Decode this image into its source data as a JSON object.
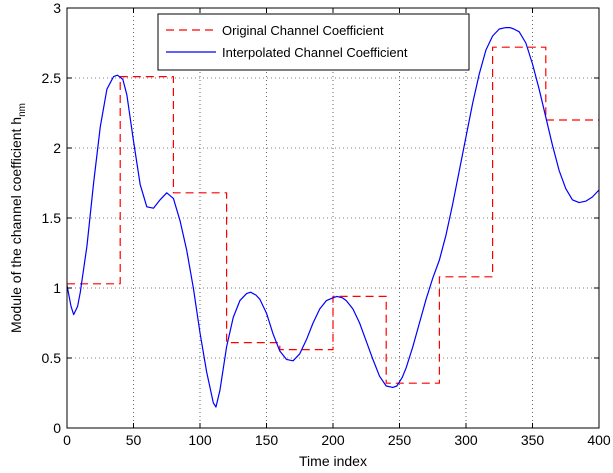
{
  "chart_data": {
    "type": "line",
    "title": "",
    "xlabel": "Time index",
    "ylabel": "Module of the channel coefficient h",
    "ylabel_subscript": "nm",
    "xlim": [
      0,
      400
    ],
    "ylim": [
      0,
      3
    ],
    "xticks": [
      0,
      50,
      100,
      150,
      200,
      250,
      300,
      350,
      400
    ],
    "yticks": [
      0,
      0.5,
      1,
      1.5,
      2,
      2.5,
      3
    ],
    "xtick_labels": [
      "0",
      "50",
      "100",
      "150",
      "200",
      "250",
      "300",
      "350",
      "400"
    ],
    "ytick_labels": [
      "0",
      "0.5",
      "1",
      "1.5",
      "2",
      "2.5",
      "3"
    ],
    "grid": true,
    "legend_position": "top-center",
    "series": [
      {
        "name": "Original Channel Coefficient",
        "style": "dashed",
        "color": "#ff0000",
        "x": [
          0,
          40,
          40,
          80,
          80,
          120,
          120,
          160,
          160,
          200,
          200,
          240,
          240,
          280,
          280,
          320,
          320,
          360,
          360,
          400
        ],
        "y": [
          1.03,
          1.03,
          2.51,
          2.51,
          1.68,
          1.68,
          0.61,
          0.61,
          0.56,
          0.56,
          0.94,
          0.94,
          0.32,
          0.32,
          1.08,
          1.08,
          2.72,
          2.72,
          2.2,
          2.2
        ]
      },
      {
        "name": "Interpolated Channel Coefficient",
        "style": "solid",
        "color": "#0000ff",
        "x": [
          0,
          3,
          5,
          8,
          10,
          15,
          20,
          25,
          30,
          35,
          38,
          42,
          45,
          50,
          55,
          60,
          65,
          70,
          75,
          80,
          85,
          90,
          95,
          100,
          105,
          110,
          112,
          115,
          120,
          125,
          130,
          135,
          138,
          142,
          145,
          150,
          155,
          160,
          165,
          170,
          175,
          180,
          185,
          190,
          195,
          200,
          203,
          207,
          210,
          215,
          220,
          225,
          230,
          235,
          240,
          245,
          248,
          252,
          255,
          260,
          265,
          270,
          275,
          280,
          285,
          290,
          295,
          300,
          305,
          310,
          315,
          320,
          325,
          330,
          333,
          336,
          340,
          345,
          350,
          355,
          360,
          365,
          370,
          375,
          380,
          385,
          390,
          395,
          400
        ],
        "y": [
          1.02,
          0.87,
          0.81,
          0.87,
          0.97,
          1.3,
          1.75,
          2.15,
          2.42,
          2.51,
          2.52,
          2.49,
          2.38,
          2.05,
          1.74,
          1.58,
          1.57,
          1.63,
          1.68,
          1.64,
          1.48,
          1.27,
          1.0,
          0.68,
          0.4,
          0.18,
          0.15,
          0.27,
          0.58,
          0.79,
          0.91,
          0.96,
          0.97,
          0.95,
          0.92,
          0.82,
          0.67,
          0.55,
          0.49,
          0.48,
          0.53,
          0.63,
          0.75,
          0.85,
          0.91,
          0.93,
          0.94,
          0.93,
          0.91,
          0.85,
          0.75,
          0.62,
          0.49,
          0.37,
          0.3,
          0.29,
          0.3,
          0.36,
          0.43,
          0.58,
          0.75,
          0.92,
          1.07,
          1.2,
          1.38,
          1.6,
          1.84,
          2.08,
          2.32,
          2.53,
          2.7,
          2.8,
          2.85,
          2.86,
          2.86,
          2.85,
          2.83,
          2.75,
          2.6,
          2.42,
          2.22,
          2.02,
          1.84,
          1.71,
          1.63,
          1.61,
          1.62,
          1.65,
          1.7
        ]
      }
    ]
  }
}
